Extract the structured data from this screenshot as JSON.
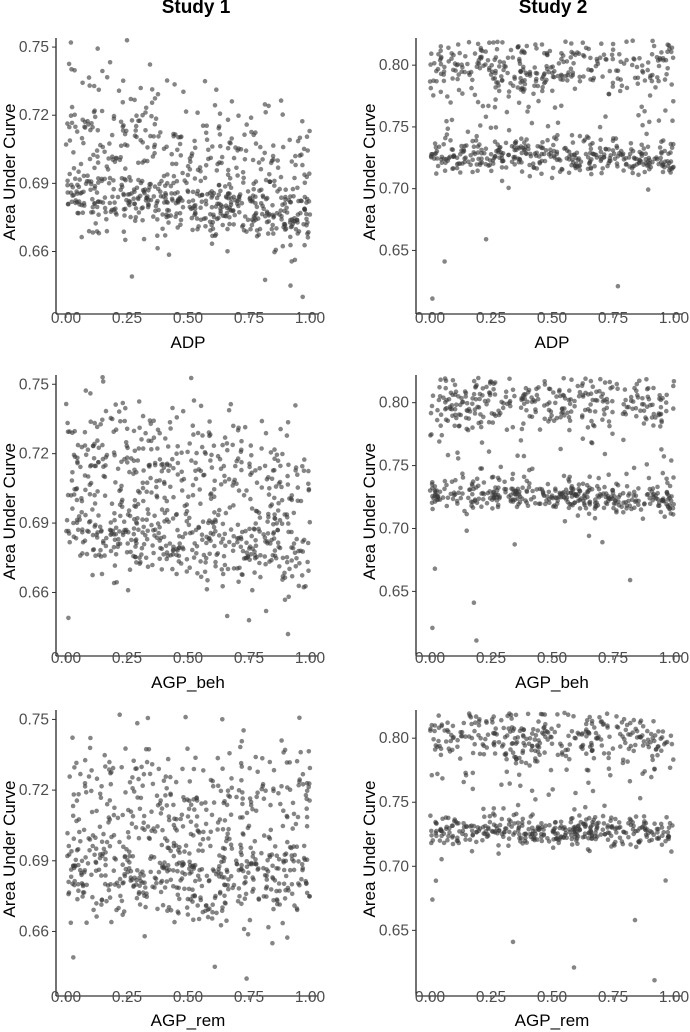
{
  "columns": [
    "Study 1",
    "Study 2"
  ],
  "chart_data": [
    {
      "type": "scatter",
      "id": "s1-adp",
      "column": 0,
      "row": 0,
      "xlabel": "ADP",
      "ylabel": "Area Under Curve",
      "xlim": [
        0,
        1
      ],
      "ylim": [
        0.636,
        0.754
      ],
      "xticks": [
        0,
        0.25,
        0.5,
        0.75,
        1
      ],
      "xtick_labels": [
        "0.00",
        "0.25",
        "0.50",
        "0.75",
        "1.00"
      ],
      "yticks": [
        0.66,
        0.69,
        0.72,
        0.75
      ],
      "ytick_labels": [
        "0.66",
        "0.69",
        "0.72",
        "0.75"
      ],
      "n_points": 700,
      "clusters": [
        {
          "from": [
            0,
            0.715
          ],
          "to": [
            1,
            0.69
          ],
          "spread": 0.016,
          "weight": 0.5
        },
        {
          "from": [
            0,
            0.686
          ],
          "to": [
            1,
            0.674
          ],
          "spread": 0.006,
          "weight": 0.5
        }
      ],
      "outliers": [
        [
          0.97,
          0.64
        ],
        [
          0.92,
          0.645
        ],
        [
          0.25,
          0.753
        ],
        [
          0.02,
          0.752
        ],
        [
          0.27,
          0.649
        ]
      ]
    },
    {
      "type": "scatter",
      "id": "s2-adp",
      "column": 1,
      "row": 0,
      "xlabel": "ADP",
      "ylabel": "Area Under Curve",
      "xlim": [
        0,
        1
      ],
      "ylim": [
        0.605,
        0.822
      ],
      "xticks": [
        0,
        0.25,
        0.5,
        0.75,
        1
      ],
      "xtick_labels": [
        "0.00",
        "0.25",
        "0.50",
        "0.75",
        "1.00"
      ],
      "yticks": [
        0.65,
        0.7,
        0.75,
        0.8
      ],
      "ytick_labels": [
        "0.65",
        "0.70",
        "0.75",
        "0.80"
      ],
      "n_points": 700,
      "clusters": [
        {
          "from": [
            0,
            0.8
          ],
          "to": [
            1,
            0.798
          ],
          "spread": 0.011,
          "weight": 0.38
        },
        {
          "from": [
            0,
            0.728
          ],
          "to": [
            1,
            0.724
          ],
          "spread": 0.007,
          "weight": 0.5
        },
        {
          "from": [
            0,
            0.76
          ],
          "to": [
            1,
            0.76
          ],
          "spread": 0.03,
          "weight": 0.12
        }
      ],
      "outliers": [
        [
          0.01,
          0.611
        ],
        [
          0.06,
          0.641
        ],
        [
          0.77,
          0.621
        ],
        [
          0.23,
          0.659
        ]
      ]
    },
    {
      "type": "scatter",
      "id": "s1-agp-beh",
      "column": 0,
      "row": 1,
      "xlabel": "AGP_beh",
      "ylabel": "Area Under Curve",
      "xlim": [
        0,
        1
      ],
      "ylim": [
        0.636,
        0.754
      ],
      "xticks": [
        0,
        0.25,
        0.5,
        0.75,
        1
      ],
      "xtick_labels": [
        "0.00",
        "0.25",
        "0.50",
        "0.75",
        "1.00"
      ],
      "yticks": [
        0.66,
        0.69,
        0.72,
        0.75
      ],
      "ytick_labels": [
        "0.66",
        "0.69",
        "0.72",
        "0.75"
      ],
      "n_points": 700,
      "clusters": [
        {
          "from": [
            0,
            0.72
          ],
          "to": [
            1,
            0.705
          ],
          "spread": 0.015,
          "weight": 0.5
        },
        {
          "from": [
            0,
            0.688
          ],
          "to": [
            1,
            0.675
          ],
          "spread": 0.009,
          "weight": 0.5
        }
      ],
      "outliers": [
        [
          0.91,
          0.642
        ],
        [
          0.15,
          0.753
        ],
        [
          0.01,
          0.649
        ],
        [
          0.75,
          0.648
        ],
        [
          0.82,
          0.652
        ]
      ]
    },
    {
      "type": "scatter",
      "id": "s2-agp-beh",
      "column": 1,
      "row": 1,
      "xlabel": "AGP_beh",
      "ylabel": "Area Under Curve",
      "xlim": [
        0,
        1
      ],
      "ylim": [
        0.605,
        0.822
      ],
      "xticks": [
        0,
        0.25,
        0.5,
        0.75,
        1
      ],
      "xtick_labels": [
        "0.00",
        "0.25",
        "0.50",
        "0.75",
        "1.00"
      ],
      "yticks": [
        0.65,
        0.7,
        0.75,
        0.8
      ],
      "ytick_labels": [
        "0.65",
        "0.70",
        "0.75",
        "0.80"
      ],
      "n_points": 700,
      "clusters": [
        {
          "from": [
            0,
            0.8
          ],
          "to": [
            1,
            0.8
          ],
          "spread": 0.011,
          "weight": 0.38
        },
        {
          "from": [
            0,
            0.729
          ],
          "to": [
            1,
            0.722
          ],
          "spread": 0.006,
          "weight": 0.5
        },
        {
          "from": [
            0,
            0.76
          ],
          "to": [
            1,
            0.76
          ],
          "spread": 0.03,
          "weight": 0.12
        }
      ],
      "outliers": [
        [
          0.01,
          0.621
        ],
        [
          0.19,
          0.611
        ],
        [
          0.18,
          0.641
        ],
        [
          0.02,
          0.668
        ],
        [
          0.82,
          0.659
        ]
      ]
    },
    {
      "type": "scatter",
      "id": "s1-agp-rem",
      "column": 0,
      "row": 2,
      "xlabel": "AGP_rem",
      "ylabel": "Area Under Curve",
      "xlim": [
        0,
        1
      ],
      "ylim": [
        0.636,
        0.754
      ],
      "xticks": [
        0,
        0.25,
        0.5,
        0.75,
        1
      ],
      "xtick_labels": [
        "0.00",
        "0.25",
        "0.50",
        "0.75",
        "1.00"
      ],
      "yticks": [
        0.66,
        0.69,
        0.72,
        0.75
      ],
      "ytick_labels": [
        "0.66",
        "0.69",
        "0.72",
        "0.75"
      ],
      "n_points": 700,
      "clusters": [
        {
          "from": [
            0,
            0.712
          ],
          "to": [
            1,
            0.708
          ],
          "spread": 0.016,
          "weight": 0.5
        },
        {
          "from": [
            0,
            0.683
          ],
          "to": [
            1,
            0.68
          ],
          "spread": 0.009,
          "weight": 0.5
        }
      ],
      "outliers": [
        [
          0.74,
          0.64
        ],
        [
          0.03,
          0.649
        ],
        [
          0.22,
          0.752
        ],
        [
          0.49,
          0.751
        ],
        [
          0.61,
          0.645
        ]
      ]
    },
    {
      "type": "scatter",
      "id": "s2-agp-rem",
      "column": 1,
      "row": 2,
      "xlabel": "AGP_rem",
      "ylabel": "Area Under Curve",
      "xlim": [
        0,
        1
      ],
      "ylim": [
        0.605,
        0.822
      ],
      "xticks": [
        0,
        0.25,
        0.5,
        0.75,
        1
      ],
      "xtick_labels": [
        "0.00",
        "0.25",
        "0.50",
        "0.75",
        "1.00"
      ],
      "yticks": [
        0.65,
        0.7,
        0.75,
        0.8
      ],
      "ytick_labels": [
        "0.65",
        "0.70",
        "0.75",
        "0.80"
      ],
      "n_points": 700,
      "clusters": [
        {
          "from": [
            0,
            0.801
          ],
          "to": [
            1,
            0.799
          ],
          "spread": 0.011,
          "weight": 0.38
        },
        {
          "from": [
            0,
            0.727
          ],
          "to": [
            1,
            0.727
          ],
          "spread": 0.006,
          "weight": 0.5
        },
        {
          "from": [
            0,
            0.76
          ],
          "to": [
            1,
            0.76
          ],
          "spread": 0.03,
          "weight": 0.12
        }
      ],
      "outliers": [
        [
          0.92,
          0.611
        ],
        [
          0.59,
          0.621
        ],
        [
          0.34,
          0.641
        ],
        [
          0.01,
          0.674
        ],
        [
          0.84,
          0.658
        ]
      ]
    }
  ]
}
